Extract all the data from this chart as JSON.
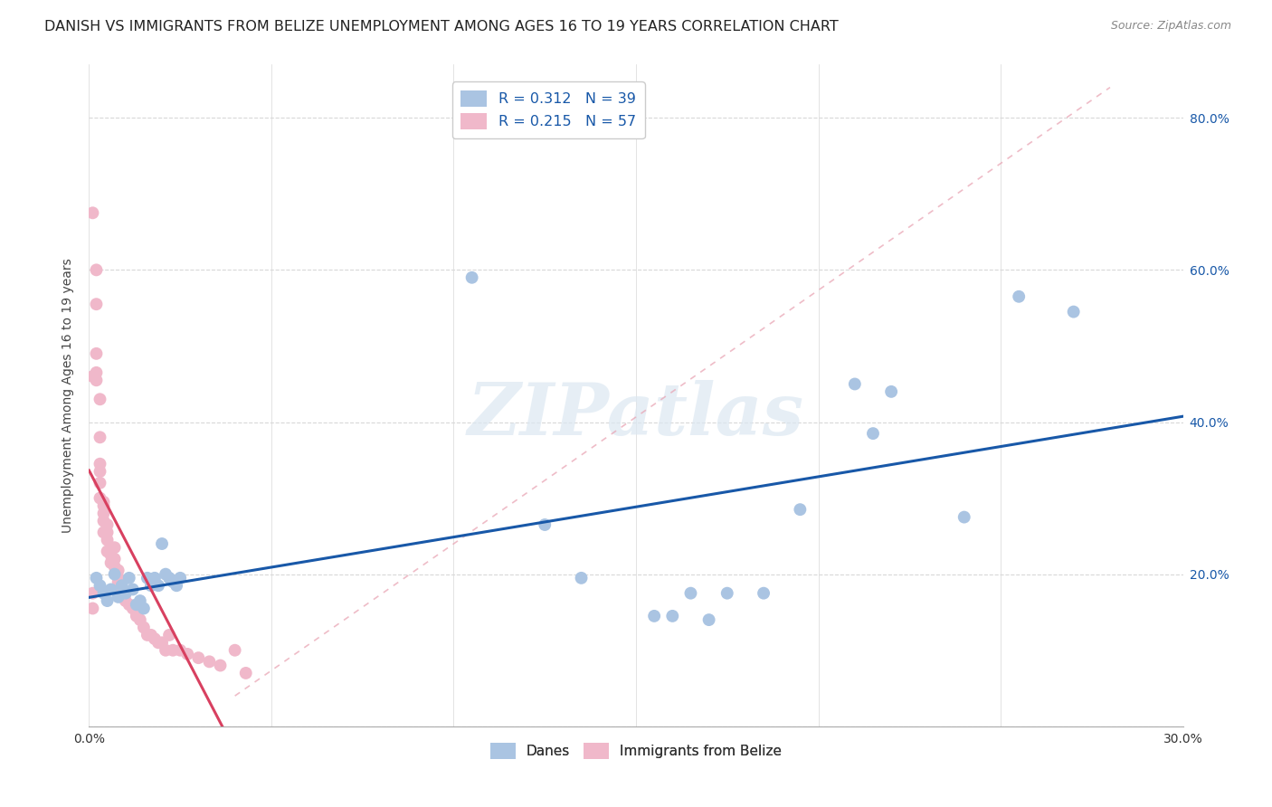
{
  "title": "DANISH VS IMMIGRANTS FROM BELIZE UNEMPLOYMENT AMONG AGES 16 TO 19 YEARS CORRELATION CHART",
  "source": "Source: ZipAtlas.com",
  "ylabel": "Unemployment Among Ages 16 to 19 years",
  "xlim": [
    0.0,
    0.3
  ],
  "ylim": [
    0.0,
    0.87
  ],
  "xticks": [
    0.0,
    0.05,
    0.1,
    0.15,
    0.2,
    0.25,
    0.3
  ],
  "yticks": [
    0.0,
    0.2,
    0.4,
    0.6,
    0.8
  ],
  "blue_color": "#aac4e2",
  "pink_color": "#f0b8ca",
  "blue_line_color": "#1858a8",
  "pink_line_color": "#d84060",
  "diag_line_color": "#e8a0b0",
  "legend_text_color": "#1858a8",
  "title_fontsize": 11.5,
  "axis_label_fontsize": 10,
  "tick_fontsize": 10,
  "blue_dots_x": [
    0.002,
    0.003,
    0.004,
    0.005,
    0.006,
    0.007,
    0.008,
    0.009,
    0.01,
    0.011,
    0.012,
    0.013,
    0.014,
    0.015,
    0.016,
    0.017,
    0.018,
    0.019,
    0.02,
    0.021,
    0.022,
    0.023,
    0.024,
    0.025,
    0.105,
    0.125,
    0.135,
    0.155,
    0.16,
    0.165,
    0.17,
    0.175,
    0.185,
    0.195,
    0.21,
    0.215,
    0.22,
    0.24,
    0.255,
    0.27
  ],
  "blue_dots_y": [
    0.195,
    0.185,
    0.175,
    0.165,
    0.18,
    0.2,
    0.17,
    0.185,
    0.175,
    0.195,
    0.18,
    0.16,
    0.165,
    0.155,
    0.195,
    0.185,
    0.195,
    0.185,
    0.24,
    0.2,
    0.195,
    0.19,
    0.185,
    0.195,
    0.59,
    0.265,
    0.195,
    0.145,
    0.145,
    0.175,
    0.14,
    0.175,
    0.175,
    0.285,
    0.45,
    0.385,
    0.44,
    0.275,
    0.565,
    0.545
  ],
  "pink_dots_x": [
    0.001,
    0.001,
    0.001,
    0.002,
    0.002,
    0.002,
    0.002,
    0.003,
    0.003,
    0.003,
    0.003,
    0.003,
    0.004,
    0.004,
    0.004,
    0.004,
    0.005,
    0.005,
    0.005,
    0.006,
    0.006,
    0.006,
    0.007,
    0.007,
    0.007,
    0.008,
    0.008,
    0.008,
    0.009,
    0.009,
    0.01,
    0.01,
    0.011,
    0.012,
    0.013,
    0.014,
    0.015,
    0.016,
    0.017,
    0.018,
    0.019,
    0.02,
    0.021,
    0.022,
    0.023,
    0.025,
    0.027,
    0.03,
    0.033,
    0.036,
    0.04,
    0.043,
    0.001,
    0.002,
    0.003,
    0.004,
    0.005
  ],
  "pink_dots_y": [
    0.675,
    0.175,
    0.155,
    0.6,
    0.555,
    0.49,
    0.455,
    0.43,
    0.38,
    0.345,
    0.32,
    0.3,
    0.295,
    0.28,
    0.27,
    0.255,
    0.255,
    0.245,
    0.23,
    0.235,
    0.225,
    0.215,
    0.235,
    0.22,
    0.21,
    0.205,
    0.195,
    0.19,
    0.18,
    0.17,
    0.175,
    0.165,
    0.16,
    0.155,
    0.145,
    0.14,
    0.13,
    0.12,
    0.12,
    0.115,
    0.11,
    0.11,
    0.1,
    0.12,
    0.1,
    0.1,
    0.095,
    0.09,
    0.085,
    0.08,
    0.1,
    0.07,
    0.46,
    0.465,
    0.335,
    0.29,
    0.265
  ],
  "watermark": "ZIPatlas",
  "background_color": "#ffffff",
  "grid_color": "#d8d8d8"
}
